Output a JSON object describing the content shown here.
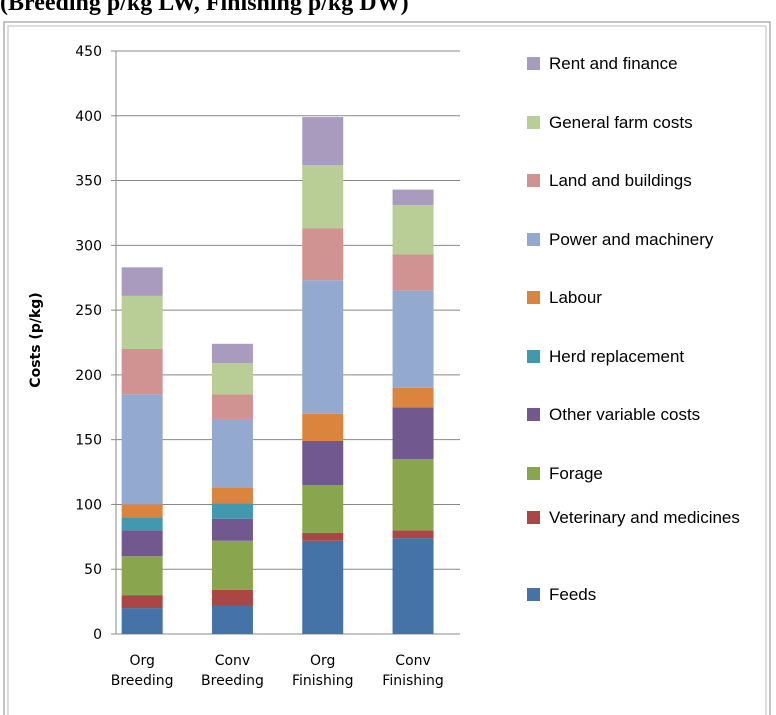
{
  "chart_data": {
    "type": "stacked_bar",
    "title": "(Breeding p/kg LW, Finishing p/kg DW)",
    "y_label": "Costs (p/kg)",
    "categories": [
      [
        "Org",
        "Breeding"
      ],
      [
        "Conv",
        "Breeding"
      ],
      [
        "Org",
        "Finishing"
      ],
      [
        "Conv",
        "Finishing"
      ]
    ],
    "series": [
      {
        "name": "Feeds",
        "color": "#4572a7",
        "values": [
          20,
          22,
          72,
          74
        ]
      },
      {
        "name": "Veterinary and medicines",
        "color": "#aa4643",
        "values": [
          10,
          12,
          6,
          6
        ]
      },
      {
        "name": "Forage",
        "color": "#89a54e",
        "values": [
          30,
          38,
          37,
          55
        ]
      },
      {
        "name": "Other variable costs",
        "color": "#71588f",
        "values": [
          20,
          17,
          34,
          40
        ]
      },
      {
        "name": "Herd replacement",
        "color": "#4198af",
        "values": [
          10,
          12,
          0,
          0
        ]
      },
      {
        "name": "Labour",
        "color": "#db843d",
        "values": [
          10,
          12,
          21,
          15
        ]
      },
      {
        "name": "Power and machinery",
        "color": "#93a9cf",
        "values": [
          85,
          53,
          103,
          75
        ]
      },
      {
        "name": "Land and buildings",
        "color": "#d19392",
        "values": [
          35,
          19,
          40,
          28
        ]
      },
      {
        "name": "General farm costs",
        "color": "#b9cd96",
        "values": [
          41,
          24,
          49,
          38
        ]
      },
      {
        "name": "Rent and finance",
        "color": "#a99bbd",
        "values": [
          22,
          15,
          37,
          12
        ]
      }
    ],
    "ylim": [
      0,
      450
    ],
    "yticks": [
      0,
      50,
      100,
      150,
      200,
      250,
      300,
      350,
      400,
      450
    ],
    "grid": true,
    "legend": "right"
  }
}
